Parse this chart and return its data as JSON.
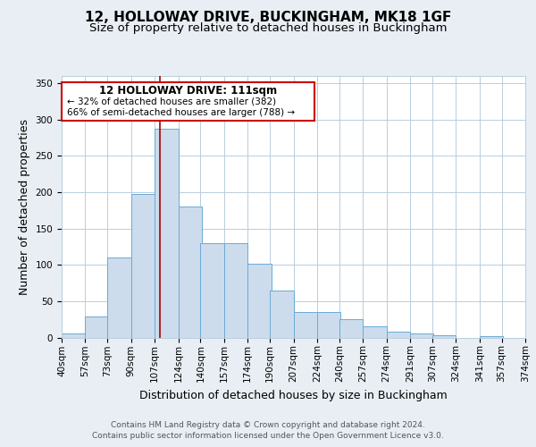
{
  "title": "12, HOLLOWAY DRIVE, BUCKINGHAM, MK18 1GF",
  "subtitle": "Size of property relative to detached houses in Buckingham",
  "xlabel": "Distribution of detached houses by size in Buckingham",
  "ylabel": "Number of detached properties",
  "footer_lines": [
    "Contains HM Land Registry data © Crown copyright and database right 2024.",
    "Contains public sector information licensed under the Open Government Licence v3.0."
  ],
  "bin_edges": [
    40,
    57,
    73,
    90,
    107,
    124,
    140,
    157,
    174,
    190,
    207,
    224,
    240,
    257,
    274,
    291,
    307,
    324,
    341,
    357,
    374
  ],
  "bin_labels": [
    "40sqm",
    "57sqm",
    "73sqm",
    "90sqm",
    "107sqm",
    "124sqm",
    "140sqm",
    "157sqm",
    "174sqm",
    "190sqm",
    "207sqm",
    "224sqm",
    "240sqm",
    "257sqm",
    "274sqm",
    "291sqm",
    "307sqm",
    "324sqm",
    "341sqm",
    "357sqm",
    "374sqm"
  ],
  "counts": [
    6,
    29,
    110,
    197,
    288,
    180,
    130,
    130,
    101,
    65,
    35,
    35,
    25,
    15,
    8,
    5,
    3,
    0,
    2,
    0
  ],
  "vline_color": "#aa0000",
  "vline_x": 111,
  "annotation_title": "12 HOLLOWAY DRIVE: 111sqm",
  "annotation_line1": "← 32% of detached houses are smaller (382)",
  "annotation_line2": "66% of semi-detached houses are larger (788) →",
  "annotation_box_color": "#ffffff",
  "annotation_border_color": "#cc0000",
  "bar_color": "#ccdcec",
  "bar_edge_color": "#6aaad4",
  "ylim": [
    0,
    360
  ],
  "yticks": [
    0,
    50,
    100,
    150,
    200,
    250,
    300,
    350
  ],
  "background_color": "#e8eef4",
  "plot_background": "#ffffff",
  "grid_color": "#b8cede",
  "title_fontsize": 11,
  "subtitle_fontsize": 9.5,
  "axis_label_fontsize": 9,
  "tick_fontsize": 7.5,
  "footer_fontsize": 6.5
}
